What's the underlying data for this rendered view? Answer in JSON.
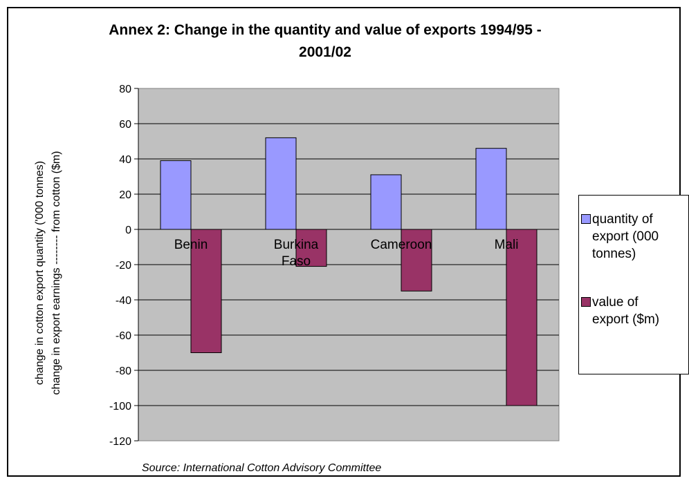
{
  "chart_data": {
    "type": "bar",
    "title": "Annex 2: Change in the quantity and value of exports 1994/95 - 2001/02",
    "title_lines": [
      "Annex 2: Change in the quantity and value of exports 1994/95 -",
      "2001/02"
    ],
    "ylabel_lines": [
      "change in cotton export quantity ('000 tonnes)",
      "change in export earnings -------- from cotton ($m)"
    ],
    "xlabel": "",
    "categories": [
      "Benin",
      "Burkina Faso",
      "Cameroon",
      "Mali"
    ],
    "category_lines": [
      [
        "Benin"
      ],
      [
        "Burkina",
        "Faso"
      ],
      [
        "Cameroon"
      ],
      [
        "Mali"
      ]
    ],
    "series": [
      {
        "name": "quantity of export (000 tonnes)",
        "legend_lines": [
          "quantity of",
          "export (000",
          "tonnes)"
        ],
        "color": "#9999ff",
        "values": [
          39,
          52,
          31,
          46
        ]
      },
      {
        "name": "value of export ($m)",
        "legend_lines": [
          "value of",
          "export ($m)"
        ],
        "color": "#993366",
        "values": [
          -70,
          -21,
          -35,
          -100
        ]
      }
    ],
    "ylim": [
      -120,
      80
    ],
    "yticks": [
      80,
      60,
      40,
      20,
      0,
      -20,
      -40,
      -60,
      -80,
      -100,
      -120
    ],
    "grid": true,
    "plot_background": "#c0c0c0",
    "legend_position": "right",
    "source": "Source: International Cotton Advisory Committee"
  }
}
